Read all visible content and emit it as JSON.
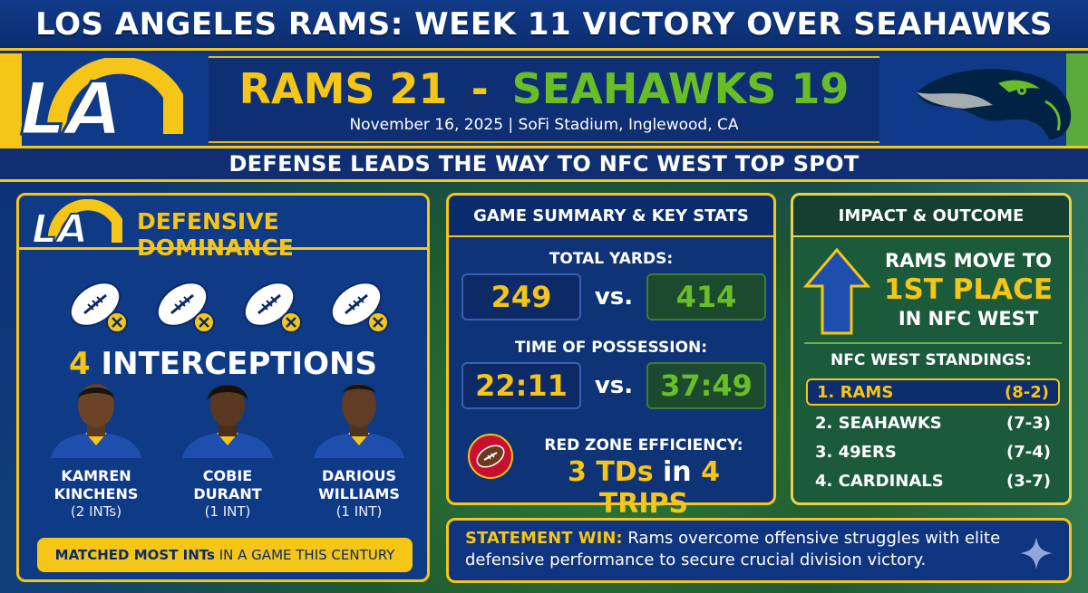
{
  "title": "LOS ANGELES RAMS: WEEK 11 VICTORY OVER SEAHAWKS",
  "score": {
    "rams_label": "RAMS 21",
    "dash": "-",
    "seahawks_label": "SEAHAWKS 19",
    "subline": "November 16, 2025 | SoFi Stadium, Inglewood, CA"
  },
  "subtitle": "DEFENSE LEADS THE WAY TO NFC WEST TOP SPOT",
  "logos": {
    "rams_logo_text": "LA"
  },
  "defense": {
    "heading": "DEFENSIVE DOMINANCE",
    "interceptions_number": "4",
    "interceptions_word": "INTERCEPTIONS",
    "players": [
      {
        "first": "KAMREN",
        "last": "KINCHENS",
        "stat": "(2 INTs)"
      },
      {
        "first": "COBIE",
        "last": "DURANT",
        "stat": "(1 INT)"
      },
      {
        "first": "DARIOUS",
        "last": "WILLIAMS",
        "stat": "(1 INT)"
      }
    ],
    "record_note_bold": "MATCHED MOST INTs",
    "record_note_rest": " IN A GAME THIS CENTURY"
  },
  "summary": {
    "heading": "GAME SUMMARY & KEY STATS",
    "vs": "vs.",
    "total_yards_label": "TOTAL YARDS:",
    "total_yards_rams": "249",
    "total_yards_sea": "414",
    "top_label": "TIME OF POSSESSION:",
    "top_rams": "22:11",
    "top_sea": "37:49",
    "rz_label": "RED ZONE EFFICIENCY:",
    "rz_tds": "3 TDs",
    "rz_in": " in ",
    "rz_trips": "4 TRIPS"
  },
  "impact": {
    "heading": "IMPACT & OUTCOME",
    "line1": "RAMS MOVE TO",
    "line2": "1ST PLACE",
    "line3": "IN NFC WEST",
    "standings_title": "NFC WEST STANDINGS:",
    "standings": [
      {
        "team": "1. RAMS",
        "record": "(8-2)"
      },
      {
        "team": "2. SEAHAWKS",
        "record": "(7-3)"
      },
      {
        "team": "3. 49ERS",
        "record": "(7-4)"
      },
      {
        "team": "4. CARDINALS",
        "record": "(3-7)"
      }
    ]
  },
  "statement": {
    "lead": "STATEMENT WIN:",
    "text": " Rams overcome offensive struggles with elite defensive performance to secure crucial division victory."
  },
  "colors": {
    "rams_blue": "#0f3a86",
    "rams_gold": "#f5c518",
    "seahawks_green": "#69be28",
    "seahawks_navy": "#002244"
  },
  "icons": [
    "football-icon",
    "x-circle-icon",
    "arrow-up-icon",
    "sparkle-icon"
  ]
}
